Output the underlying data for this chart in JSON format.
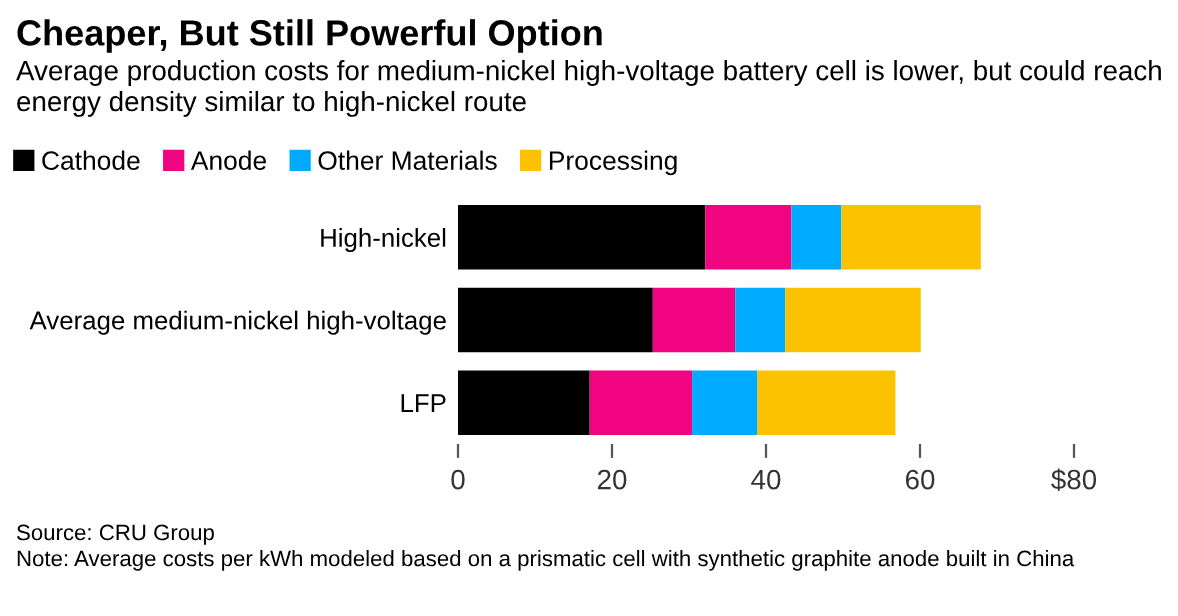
{
  "chart_data": {
    "type": "bar",
    "orientation": "horizontal",
    "stacked": true,
    "title": "Cheaper, But Still Powerful Option",
    "subtitle": "Average production costs for medium-nickel high-voltage battery cell is lower, but could reach energy density similar to high-nickel route",
    "categories": [
      "High-nickel",
      "Average medium-nickel high-voltage",
      "LFP"
    ],
    "series": [
      {
        "name": "Cathode",
        "color": "#000000",
        "values": [
          32.1,
          25.3,
          17.1
        ]
      },
      {
        "name": "Anode",
        "color": "#f0047f",
        "values": [
          11.2,
          10.7,
          13.3
        ]
      },
      {
        "name": "Other Materials",
        "color": "#00aaff",
        "values": [
          6.5,
          6.5,
          8.5
        ]
      },
      {
        "name": "Processing",
        "color": "#fcc200",
        "values": [
          18.1,
          17.6,
          17.9
        ]
      }
    ],
    "xlim": [
      0,
      80
    ],
    "xticks": [
      0,
      20,
      40,
      60,
      {
        "value": 80,
        "label": "$80"
      }
    ],
    "grid": false,
    "legend": "top left",
    "annotations": [
      "Source: CRU Group",
      "Note: Average costs per kWh modeled based on a prismatic cell with synthetic graphite anode built in China"
    ]
  }
}
